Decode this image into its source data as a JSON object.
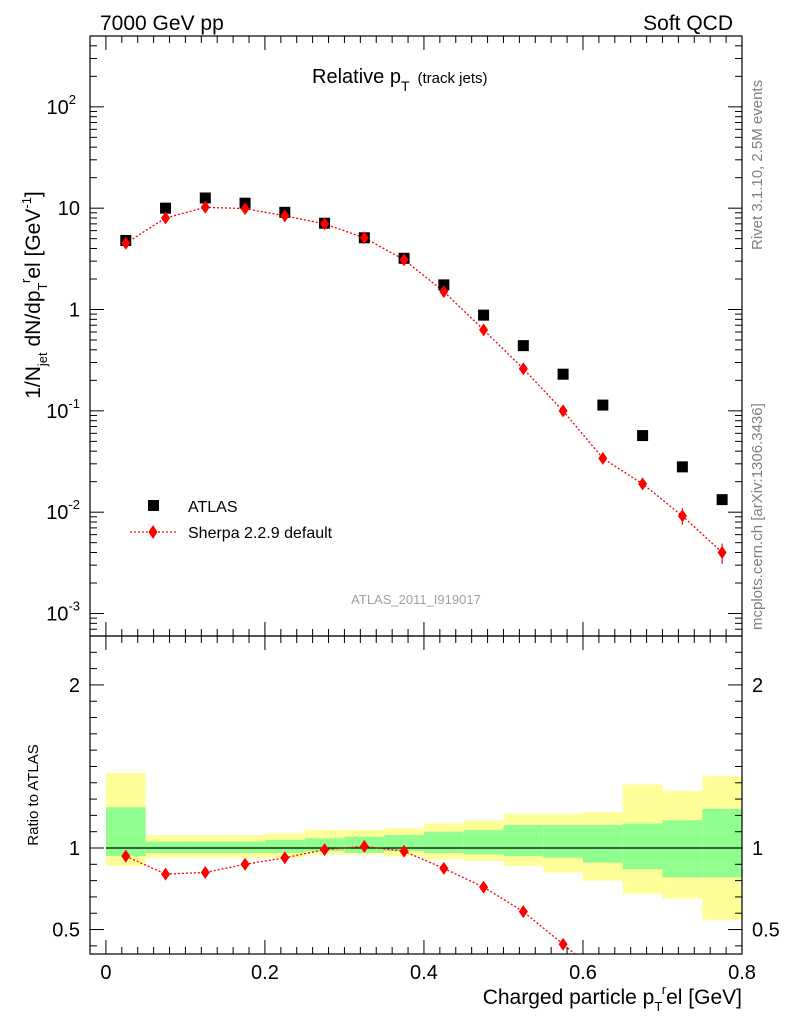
{
  "header": {
    "energy_label": "7000 GeV pp",
    "process_label": "Soft QCD",
    "title_main": "Relative p",
    "title_sub": "T",
    "title_extra": "(track jets)",
    "rivet_label": "Rivet 3.1.10,  2.5M events",
    "mcplots_label": "mcplots.cern.ch [arXiv:1306.3436]",
    "analysis_label": "ATLAS_2011_I919017"
  },
  "colors": {
    "atlas": "#000000",
    "mc": "#ff0000",
    "band_inner": "#90ff90",
    "band_outer": "#ffff99"
  },
  "chart_data": [
    {
      "type": "scatter",
      "title": "Relative pT (track jets)",
      "xlabel": "Charged particle p_T^rel [GeV]",
      "ylabel": "1/N_jet dN/dp_T^rel [GeV^-1]",
      "ylabel_text": "1/N",
      "ylabel_sub": "jet",
      "ylabel_text2": " dN/dp",
      "ylabel_sub2": "T",
      "ylabel_sup2": "r",
      "ylabel_text3": "el [GeV",
      "ylabel_sup3": "-1",
      "ylabel_text4": "]",
      "xlim": [
        -0.02,
        0.8
      ],
      "ylim": [
        0.0006,
        500
      ],
      "yscale": "log",
      "y_ticks": [
        {
          "value": 0.001,
          "base": "10",
          "exp": "-3"
        },
        {
          "value": 0.01,
          "base": "10",
          "exp": "-2"
        },
        {
          "value": 0.1,
          "base": "10",
          "exp": "-1"
        },
        {
          "value": 1,
          "base": "1",
          "exp": ""
        },
        {
          "value": 10,
          "base": "10",
          "exp": ""
        },
        {
          "value": 100,
          "base": "10",
          "exp": "2"
        }
      ],
      "legend_position": "lower-left",
      "series": [
        {
          "name": "ATLAS",
          "marker": "square",
          "x": [
            0.025,
            0.075,
            0.125,
            0.175,
            0.225,
            0.275,
            0.325,
            0.375,
            0.425,
            0.475,
            0.525,
            0.575,
            0.625,
            0.675,
            0.725,
            0.775
          ],
          "y": [
            4.8,
            10.0,
            12.6,
            11.2,
            9.1,
            7.1,
            5.1,
            3.2,
            1.75,
            0.88,
            0.44,
            0.23,
            0.114,
            0.057,
            0.028,
            0.0133
          ]
        },
        {
          "name": "Sherpa 2.2.9 default",
          "marker": "diamond",
          "line": "dotted",
          "x": [
            0.025,
            0.075,
            0.125,
            0.175,
            0.225,
            0.275,
            0.325,
            0.375,
            0.425,
            0.475,
            0.525,
            0.575,
            0.625,
            0.675,
            0.725,
            0.775
          ],
          "y": [
            4.5,
            8.0,
            10.2,
            9.9,
            8.4,
            7.0,
            5.1,
            3.1,
            1.5,
            0.63,
            0.26,
            0.1,
            0.034,
            0.019,
            0.0092,
            0.004
          ],
          "yerr": [
            0,
            0,
            0,
            0,
            0,
            0,
            0,
            0,
            0,
            0,
            0,
            0,
            0.003,
            0.002,
            0.0017,
            0.0009
          ]
        }
      ]
    },
    {
      "type": "line",
      "ylabel": "Ratio to ATLAS",
      "xlabel": "Charged particle p_T^rel [GeV]",
      "xlabel_text": "Charged particle p",
      "xlabel_sub": "T",
      "xlabel_sup": "r",
      "xlabel_text2": "el [GeV]",
      "xlim": [
        -0.02,
        0.8
      ],
      "ylim": [
        0.35,
        2.3
      ],
      "x_tick_labels": [
        "0",
        "0.2",
        "0.4",
        "0.6",
        "0.8"
      ],
      "x_tick_values": [
        0,
        0.2,
        0.4,
        0.6,
        0.8
      ],
      "y_tick_labels": [
        "0.5",
        "1",
        "2"
      ],
      "y_tick_values": [
        0.5,
        1,
        2
      ],
      "reference_line": 1,
      "bin_edges": [
        0,
        0.05,
        0.1,
        0.15,
        0.2,
        0.25,
        0.3,
        0.35,
        0.4,
        0.45,
        0.5,
        0.55,
        0.6,
        0.65,
        0.7,
        0.75,
        0.8
      ],
      "band_inner": [
        [
          0.95,
          1.25
        ],
        [
          0.97,
          1.04
        ],
        [
          0.97,
          1.04
        ],
        [
          0.97,
          1.04
        ],
        [
          0.97,
          1.05
        ],
        [
          0.98,
          1.06
        ],
        [
          0.97,
          1.07
        ],
        [
          0.98,
          1.08
        ],
        [
          0.97,
          1.1
        ],
        [
          0.96,
          1.11
        ],
        [
          0.95,
          1.14
        ],
        [
          0.94,
          1.14
        ],
        [
          0.91,
          1.14
        ],
        [
          0.87,
          1.15
        ],
        [
          0.82,
          1.17
        ],
        [
          0.82,
          1.24
        ]
      ],
      "band_outer": [
        [
          0.89,
          1.46
        ],
        [
          0.94,
          1.08
        ],
        [
          0.94,
          1.08
        ],
        [
          0.94,
          1.08
        ],
        [
          0.94,
          1.09
        ],
        [
          0.96,
          1.11
        ],
        [
          0.96,
          1.11
        ],
        [
          0.95,
          1.12
        ],
        [
          0.93,
          1.15
        ],
        [
          0.92,
          1.17
        ],
        [
          0.89,
          1.21
        ],
        [
          0.85,
          1.21
        ],
        [
          0.8,
          1.22
        ],
        [
          0.72,
          1.39
        ],
        [
          0.69,
          1.35
        ],
        [
          0.56,
          1.44
        ]
      ],
      "series": [
        {
          "name": "Sherpa 2.2.9 default",
          "x": [
            0.025,
            0.075,
            0.125,
            0.175,
            0.225,
            0.275,
            0.325,
            0.375,
            0.425,
            0.475,
            0.525,
            0.575
          ],
          "y": [
            0.95,
            0.84,
            0.85,
            0.9,
            0.94,
            0.99,
            1.01,
            0.98,
            0.875,
            0.76,
            0.61,
            0.41
          ],
          "yerr": [
            0,
            0,
            0,
            0,
            0,
            0,
            0,
            0,
            0,
            0,
            0.02,
            0.03
          ]
        }
      ]
    }
  ]
}
